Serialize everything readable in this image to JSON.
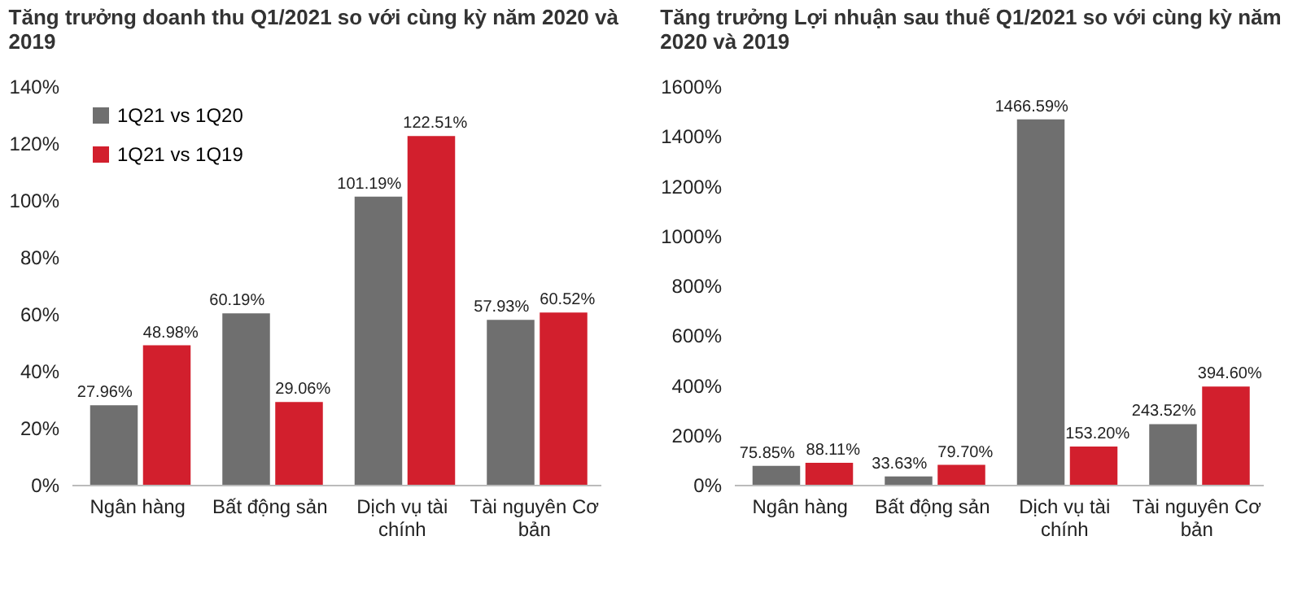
{
  "chart_data": [
    {
      "type": "bar",
      "title": "Tăng trưởng doanh thu Q1/2021 so với cùng kỳ năm 2020 và 2019",
      "categories": [
        "Ngân hàng",
        "Bất động sản",
        "Dịch vụ tài chính",
        "Tài nguyên Cơ bản"
      ],
      "series": [
        {
          "name": "1Q21 vs 1Q20",
          "color": "#6f6f6f",
          "values": [
            27.96,
            60.19,
            101.19,
            57.93
          ],
          "value_labels": [
            "27.96%",
            "60.19%",
            "101.19%",
            "57.93%"
          ]
        },
        {
          "name": "1Q21 vs 1Q19",
          "color": "#d21f2d",
          "values": [
            48.98,
            29.06,
            122.51,
            60.52
          ],
          "value_labels": [
            "48.98%",
            "29.06%",
            "122.51%",
            "60.52%"
          ]
        }
      ],
      "ylim": [
        0,
        140
      ],
      "yticks": [
        {
          "value": 0,
          "label": "0%"
        },
        {
          "value": 20,
          "label": "20%"
        },
        {
          "value": 40,
          "label": "40%"
        },
        {
          "value": 60,
          "label": "60%"
        },
        {
          "value": 80,
          "label": "80%"
        },
        {
          "value": 100,
          "label": "100%"
        },
        {
          "value": 120,
          "label": "120%"
        },
        {
          "value": 140,
          "label": "140%"
        }
      ],
      "legend": "top left",
      "grid": false
    },
    {
      "type": "bar",
      "title": "Tăng trưởng Lợi nhuận sau thuế Q1/2021 so với cùng kỳ năm 2020 và 2019",
      "categories": [
        "Ngân hàng",
        "Bất động sản",
        "Dịch vụ tài chính",
        "Tài nguyên Cơ bản"
      ],
      "series": [
        {
          "name": "1Q21 vs 1Q20",
          "color": "#6f6f6f",
          "values": [
            75.85,
            33.63,
            1466.59,
            243.52
          ],
          "value_labels": [
            "75.85%",
            "33.63%",
            "1466.59%",
            "243.52%"
          ]
        },
        {
          "name": "1Q21 vs 1Q19",
          "color": "#d21f2d",
          "values": [
            88.11,
            79.7,
            153.2,
            394.6
          ],
          "value_labels": [
            "88.11%",
            "79.70%",
            "153.20%",
            "394.60%"
          ]
        }
      ],
      "ylim": [
        0,
        1600
      ],
      "yticks": [
        {
          "value": 0,
          "label": "0%"
        },
        {
          "value": 200,
          "label": "200%"
        },
        {
          "value": 400,
          "label": "400%"
        },
        {
          "value": 600,
          "label": "600%"
        },
        {
          "value": 800,
          "label": "800%"
        },
        {
          "value": 1000,
          "label": "1000%"
        },
        {
          "value": 1200,
          "label": "1200%"
        },
        {
          "value": 1400,
          "label": "1400%"
        },
        {
          "value": 1600,
          "label": "1600%"
        }
      ],
      "legend": "top left",
      "grid": false
    }
  ]
}
